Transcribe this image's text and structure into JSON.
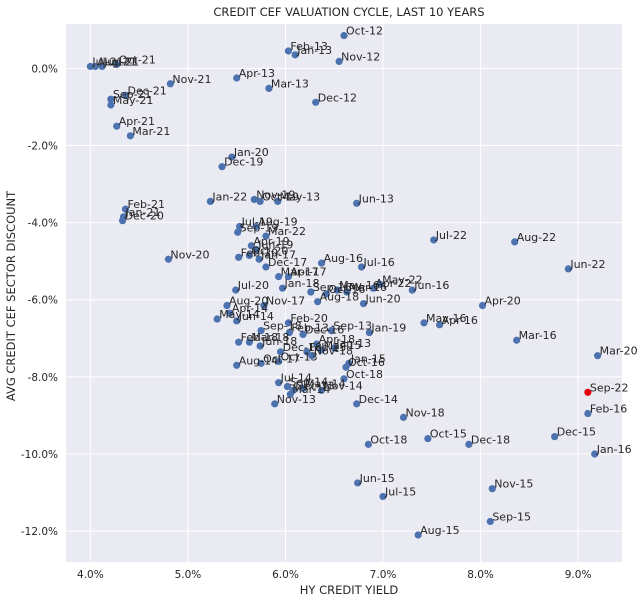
{
  "chart_data": {
    "type": "scatter",
    "title": "CREDIT CEF VALUATION CYCLE, LAST 10 YEARS",
    "xlabel": "HY CREDIT YIELD",
    "ylabel": "AVG CREDIT CEF SECTOR DISCOUNT",
    "xlim": [
      3.75,
      9.45
    ],
    "ylim": [
      -12.8,
      1.15
    ],
    "grid": true,
    "x_ticks": [
      4.0,
      5.0,
      6.0,
      7.0,
      8.0,
      9.0
    ],
    "x_tick_labels": [
      "4.0%",
      "5.0%",
      "6.0%",
      "7.0%",
      "8.0%",
      "9.0%"
    ],
    "y_ticks": [
      0,
      -2,
      -4,
      -6,
      -8,
      -10,
      -12
    ],
    "y_tick_labels": [
      "0.0%",
      "-2.0%",
      "-4.0%",
      "-6.0%",
      "-8.0%",
      "-10.0%",
      "-12.0%"
    ],
    "colors": {
      "point": "#4c72b0",
      "highlight": "#e8000b",
      "background": "#eaeaf2",
      "grid": "#ffffff"
    },
    "highlight_label": "Sep-22",
    "points": [
      {
        "label": "Oct-12",
        "x": 6.6,
        "y": 0.85
      },
      {
        "label": "Feb-13",
        "x": 6.03,
        "y": 0.45
      },
      {
        "label": "Jan-13",
        "x": 6.1,
        "y": 0.35
      },
      {
        "label": "Nov-12",
        "x": 6.55,
        "y": 0.18
      },
      {
        "label": "Apr-13",
        "x": 5.5,
        "y": -0.25
      },
      {
        "label": "Mar-13",
        "x": 5.83,
        "y": -0.52
      },
      {
        "label": "Dec-12",
        "x": 6.31,
        "y": -0.88
      },
      {
        "label": "Jul-21",
        "x": 4.0,
        "y": 0.05
      },
      {
        "label": "Aug-21",
        "x": 4.05,
        "y": 0.05
      },
      {
        "label": "Jun-21",
        "x": 4.12,
        "y": 0.05
      },
      {
        "label": "Oct-21",
        "x": 4.27,
        "y": 0.1
      },
      {
        "label": "Nov-21",
        "x": 4.82,
        "y": -0.4
      },
      {
        "label": "Dec-21",
        "x": 4.36,
        "y": -0.7
      },
      {
        "label": "Sep-21",
        "x": 4.21,
        "y": -0.8
      },
      {
        "label": "May-21",
        "x": 4.21,
        "y": -0.95
      },
      {
        "label": "Apr-21",
        "x": 4.27,
        "y": -1.5
      },
      {
        "label": "Mar-21",
        "x": 4.41,
        "y": -1.75
      },
      {
        "label": "Jan-20",
        "x": 5.45,
        "y": -2.3
      },
      {
        "label": "Dec-19",
        "x": 5.35,
        "y": -2.55
      },
      {
        "label": "Jan-22",
        "x": 5.23,
        "y": -3.45
      },
      {
        "label": "Nov-19",
        "x": 5.68,
        "y": -3.4
      },
      {
        "label": "Oct-19",
        "x": 5.74,
        "y": -3.45
      },
      {
        "label": "May-13",
        "x": 5.92,
        "y": -3.45
      },
      {
        "label": "Jun-13",
        "x": 6.73,
        "y": -3.5
      },
      {
        "label": "Feb-21",
        "x": 4.36,
        "y": -3.65
      },
      {
        "label": "Jan-21",
        "x": 4.34,
        "y": -3.85
      },
      {
        "label": "Dec-20",
        "x": 4.33,
        "y": -3.95
      },
      {
        "label": "Jul-19",
        "x": 5.53,
        "y": -4.1
      },
      {
        "label": "Aug-19",
        "x": 5.7,
        "y": -4.1
      },
      {
        "label": "Sep-19",
        "x": 5.51,
        "y": -4.25
      },
      {
        "label": "Mar-22",
        "x": 5.8,
        "y": -4.35
      },
      {
        "label": "Jul-22",
        "x": 7.52,
        "y": -4.45
      },
      {
        "label": "Aug-22",
        "x": 8.35,
        "y": -4.5
      },
      {
        "label": "Apr-19",
        "x": 5.65,
        "y": -4.6
      },
      {
        "label": "Jun-19",
        "x": 5.7,
        "y": -4.7
      },
      {
        "label": "Nov-20",
        "x": 4.8,
        "y": -4.95
      },
      {
        "label": "Feb-20",
        "x": 5.52,
        "y": -4.9
      },
      {
        "label": "Oct-20",
        "x": 5.63,
        "y": -4.85
      },
      {
        "label": "Jan-17",
        "x": 5.73,
        "y": -4.95
      },
      {
        "label": "Dec-17",
        "x": 5.8,
        "y": -5.15
      },
      {
        "label": "Aug-16",
        "x": 6.37,
        "y": -5.05
      },
      {
        "label": "Jul-16",
        "x": 6.78,
        "y": -5.15
      },
      {
        "label": "Jun-22",
        "x": 8.9,
        "y": -5.2
      },
      {
        "label": "Mar-17",
        "x": 5.93,
        "y": -5.4
      },
      {
        "label": "Apr-17",
        "x": 6.03,
        "y": -5.4
      },
      {
        "label": "Jan-18",
        "x": 5.97,
        "y": -5.7
      },
      {
        "label": "Jul-20",
        "x": 5.49,
        "y": -5.75
      },
      {
        "label": "Sep-16",
        "x": 6.26,
        "y": -5.8
      },
      {
        "label": "May-16",
        "x": 6.53,
        "y": -5.75
      },
      {
        "label": "Mar-16",
        "x": 6.63,
        "y": -5.8
      },
      {
        "label": "Oct-16",
        "x": 6.42,
        "y": -5.85
      },
      {
        "label": "May-22",
        "x": 6.97,
        "y": -5.6
      },
      {
        "label": "Apr-22",
        "x": 6.9,
        "y": -5.7
      },
      {
        "label": "Jun-16",
        "x": 7.3,
        "y": -5.75
      },
      {
        "label": "Aug-18",
        "x": 6.33,
        "y": -6.05
      },
      {
        "label": "Nov-17",
        "x": 5.78,
        "y": -6.15
      },
      {
        "label": "Aug-20",
        "x": 5.4,
        "y": -6.15
      },
      {
        "label": "Jun-20",
        "x": 6.8,
        "y": -6.1
      },
      {
        "label": "Apr-20",
        "x": 8.02,
        "y": -6.15
      },
      {
        "label": "Apr-14",
        "x": 5.43,
        "y": -6.35
      },
      {
        "label": "May-14",
        "x": 5.3,
        "y": -6.5
      },
      {
        "label": "Jun-14",
        "x": 5.5,
        "y": -6.55
      },
      {
        "label": "May-16b",
        "x": 7.42,
        "y": -6.6
      },
      {
        "label": "Apr-16",
        "x": 7.58,
        "y": -6.65
      },
      {
        "label": "Feb-20b",
        "x": 6.03,
        "y": -6.6
      },
      {
        "label": "Sep-13",
        "x": 6.47,
        "y": -6.8
      },
      {
        "label": "Jan-19",
        "x": 6.86,
        "y": -6.85
      },
      {
        "label": "Dec-16",
        "x": 6.18,
        "y": -6.9
      },
      {
        "label": "Sep-18",
        "x": 5.75,
        "y": -6.8
      },
      {
        "label": "Feb-13b",
        "x": 6.04,
        "y": -6.85
      },
      {
        "label": "Mar-16b",
        "x": 8.37,
        "y": -7.05
      },
      {
        "label": "Mar-20",
        "x": 9.2,
        "y": -7.45
      },
      {
        "label": "Feb-18",
        "x": 5.52,
        "y": -7.1
      },
      {
        "label": "Mar-18",
        "x": 5.63,
        "y": -7.1
      },
      {
        "label": "Jun-18",
        "x": 5.74,
        "y": -7.2
      },
      {
        "label": "Apr-18",
        "x": 6.32,
        "y": -7.15
      },
      {
        "label": "Jan-13b",
        "x": 6.5,
        "y": -7.25
      },
      {
        "label": "Dec-18",
        "x": 5.95,
        "y": -7.35
      },
      {
        "label": "Feb-15",
        "x": 6.22,
        "y": -7.35
      },
      {
        "label": "Mar-15",
        "x": 6.37,
        "y": -7.3
      },
      {
        "label": "Nov-18",
        "x": 6.27,
        "y": -7.45
      },
      {
        "label": "Aug-14",
        "x": 5.5,
        "y": -7.7
      },
      {
        "label": "Oct-17",
        "x": 5.75,
        "y": -7.65
      },
      {
        "label": "Oct-13",
        "x": 5.93,
        "y": -7.6
      },
      {
        "label": "Jan-15",
        "x": 6.65,
        "y": -7.65
      },
      {
        "label": "Oct-16b",
        "x": 6.62,
        "y": -7.75
      },
      {
        "label": "Oct-18",
        "x": 6.6,
        "y": -8.05
      },
      {
        "label": "Jul-14",
        "x": 5.93,
        "y": -8.15
      },
      {
        "label": "Sep-14",
        "x": 6.02,
        "y": -8.25
      },
      {
        "label": "Dec-13",
        "x": 6.08,
        "y": -8.35
      },
      {
        "label": "Mar-14",
        "x": 6.05,
        "y": -8.45
      },
      {
        "label": "May-14b",
        "x": 6.18,
        "y": -8.3
      },
      {
        "label": "Nov-14",
        "x": 6.37,
        "y": -8.35
      },
      {
        "label": "Sep-22",
        "x": 9.1,
        "y": -8.4
      },
      {
        "label": "Nov-13",
        "x": 5.89,
        "y": -8.7
      },
      {
        "label": "Dec-14",
        "x": 6.73,
        "y": -8.7
      },
      {
        "label": "Feb-16",
        "x": 9.1,
        "y": -8.95
      },
      {
        "label": "Nov-18b",
        "x": 7.21,
        "y": -9.05
      },
      {
        "label": "Oct-15",
        "x": 7.46,
        "y": -9.6
      },
      {
        "label": "Dec-18b",
        "x": 7.88,
        "y": -9.75
      },
      {
        "label": "Oct-18b",
        "x": 6.85,
        "y": -9.75
      },
      {
        "label": "Dec-15",
        "x": 8.76,
        "y": -9.55
      },
      {
        "label": "Jan-16",
        "x": 9.17,
        "y": -10.0
      },
      {
        "label": "Nov-15",
        "x": 8.12,
        "y": -10.9
      },
      {
        "label": "Jun-15",
        "x": 6.74,
        "y": -10.75
      },
      {
        "label": "Jul-15",
        "x": 7.0,
        "y": -11.1
      },
      {
        "label": "Sep-15",
        "x": 8.1,
        "y": -11.75
      },
      {
        "label": "Aug-15",
        "x": 7.36,
        "y": -12.1
      }
    ]
  }
}
